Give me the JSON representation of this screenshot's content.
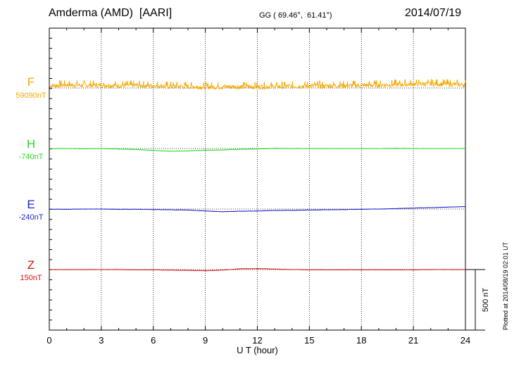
{
  "header": {
    "station": "Amderma (AMD)  [AARI]",
    "coords": "GG ( 69.46°,  61.41°)",
    "date": "2014/07/19",
    "credit": "Plotted at 2014/08/19 02:01  UT"
  },
  "chart_data": {
    "type": "line",
    "xlabel": "U T (hour)",
    "x_ticks": [
      "0",
      "3",
      "6",
      "9",
      "12",
      "15",
      "18",
      "21",
      "24"
    ],
    "xlim": [
      0,
      24
    ],
    "scale_bar_label": "500 nT",
    "scale_bar_nT": 500,
    "series": [
      {
        "name": "F",
        "baseline_label": "59090nT",
        "color": "#f5a800",
        "x": [
          0,
          1,
          2,
          3,
          4,
          5,
          6,
          7,
          8,
          9,
          10,
          11,
          12,
          13,
          14,
          15,
          16,
          17,
          18,
          19,
          20,
          21,
          22,
          23,
          24
        ],
        "offset_nT": [
          12,
          20,
          16,
          18,
          14,
          16,
          12,
          8,
          6,
          2,
          4,
          6,
          4,
          6,
          8,
          10,
          12,
          14,
          16,
          18,
          22,
          26,
          28,
          26,
          20
        ],
        "noise_nT": 40
      },
      {
        "name": "H",
        "baseline_label": "-740nT",
        "color": "#22dd22",
        "x": [
          0,
          1,
          2,
          3,
          4,
          5,
          6,
          7,
          8,
          9,
          10,
          11,
          12,
          13,
          14,
          15,
          16,
          17,
          18,
          19,
          20,
          21,
          22,
          23,
          24
        ],
        "offset_nT": [
          0,
          0,
          -2,
          0,
          -4,
          -8,
          -16,
          -22,
          -20,
          -14,
          -12,
          -6,
          -4,
          2,
          0,
          0,
          0,
          0,
          0,
          0,
          2,
          0,
          0,
          0,
          0
        ],
        "noise_nT": 2
      },
      {
        "name": "E",
        "baseline_label": "-240nT",
        "color": "#2020cc",
        "x": [
          0,
          1,
          2,
          3,
          4,
          5,
          6,
          7,
          8,
          9,
          10,
          11,
          12,
          13,
          14,
          15,
          16,
          17,
          18,
          19,
          20,
          21,
          22,
          23,
          24
        ],
        "offset_nT": [
          -2,
          -2,
          0,
          0,
          -2,
          -2,
          -4,
          -6,
          -8,
          -16,
          -22,
          -18,
          -16,
          -12,
          -10,
          -8,
          -6,
          -4,
          -2,
          0,
          4,
          8,
          12,
          16,
          20
        ],
        "noise_nT": 2
      },
      {
        "name": "Z",
        "baseline_label": "150nT",
        "color": "#dd1111",
        "x": [
          0,
          1,
          2,
          3,
          4,
          5,
          6,
          7,
          8,
          9,
          10,
          11,
          12,
          13,
          14,
          15,
          16,
          17,
          18,
          19,
          20,
          21,
          22,
          23,
          24
        ],
        "offset_nT": [
          0,
          0,
          0,
          0,
          0,
          -2,
          -2,
          -4,
          -6,
          -10,
          -4,
          6,
          8,
          4,
          0,
          -2,
          -2,
          -2,
          -2,
          -2,
          -2,
          -2,
          0,
          0,
          0
        ],
        "noise_nT": 2
      }
    ]
  }
}
